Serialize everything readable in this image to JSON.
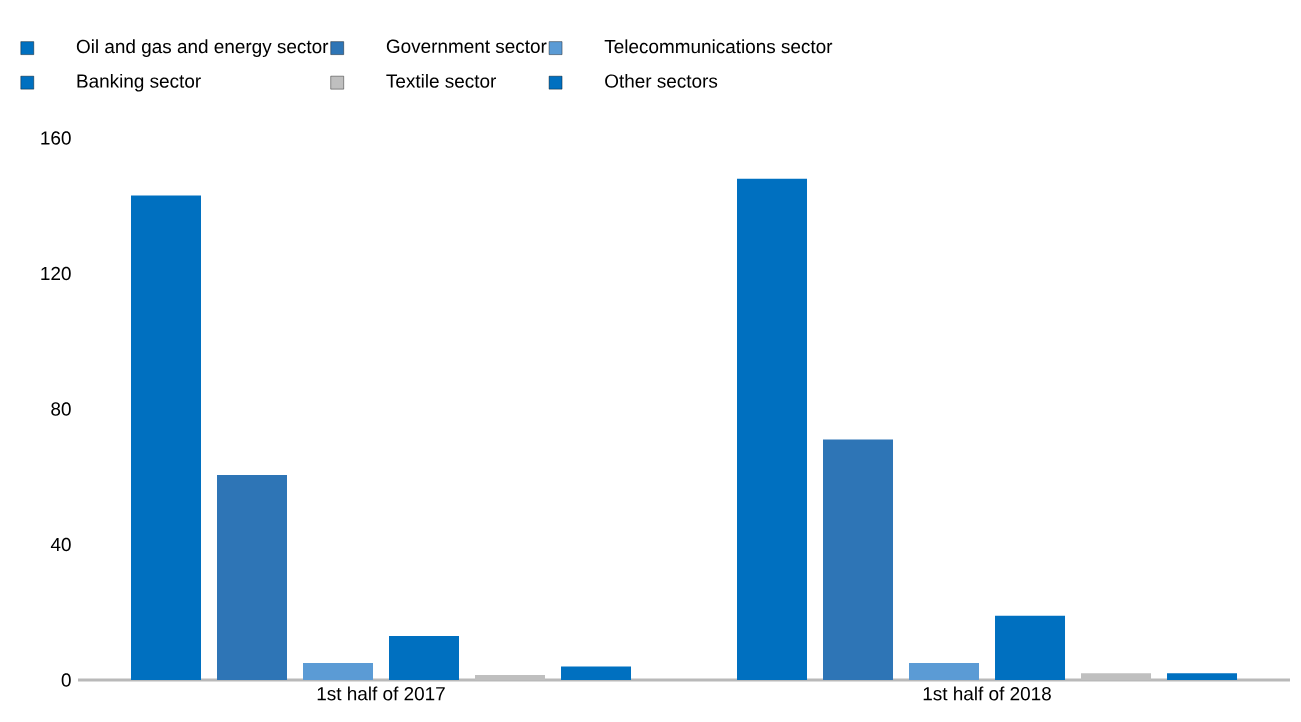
{
  "chart_data": {
    "type": "bar",
    "categories": [
      "1st half of 2017",
      "1st half of 2018"
    ],
    "series": [
      {
        "name": "Oil and gas and energy sector",
        "color": "#0070c0",
        "values": [
          143,
          148
        ]
      },
      {
        "name": "Government sector",
        "color": "#2e75b6",
        "values": [
          60.5,
          71
        ]
      },
      {
        "name": "Telecommunications sector",
        "color": "#5b9bd5",
        "values": [
          5,
          5
        ]
      },
      {
        "name": "Banking sector",
        "color": "#0070c0",
        "values": [
          13,
          19
        ]
      },
      {
        "name": "Textile sector",
        "color": "#bfbfbf",
        "values": [
          1.5,
          2
        ]
      },
      {
        "name": "Other sectors",
        "color": "#0070c0",
        "values": [
          4,
          2
        ]
      }
    ],
    "ylim": [
      0,
      160
    ],
    "yticks": [
      0,
      40,
      80,
      120,
      160
    ],
    "grid": false,
    "legend": "top"
  }
}
